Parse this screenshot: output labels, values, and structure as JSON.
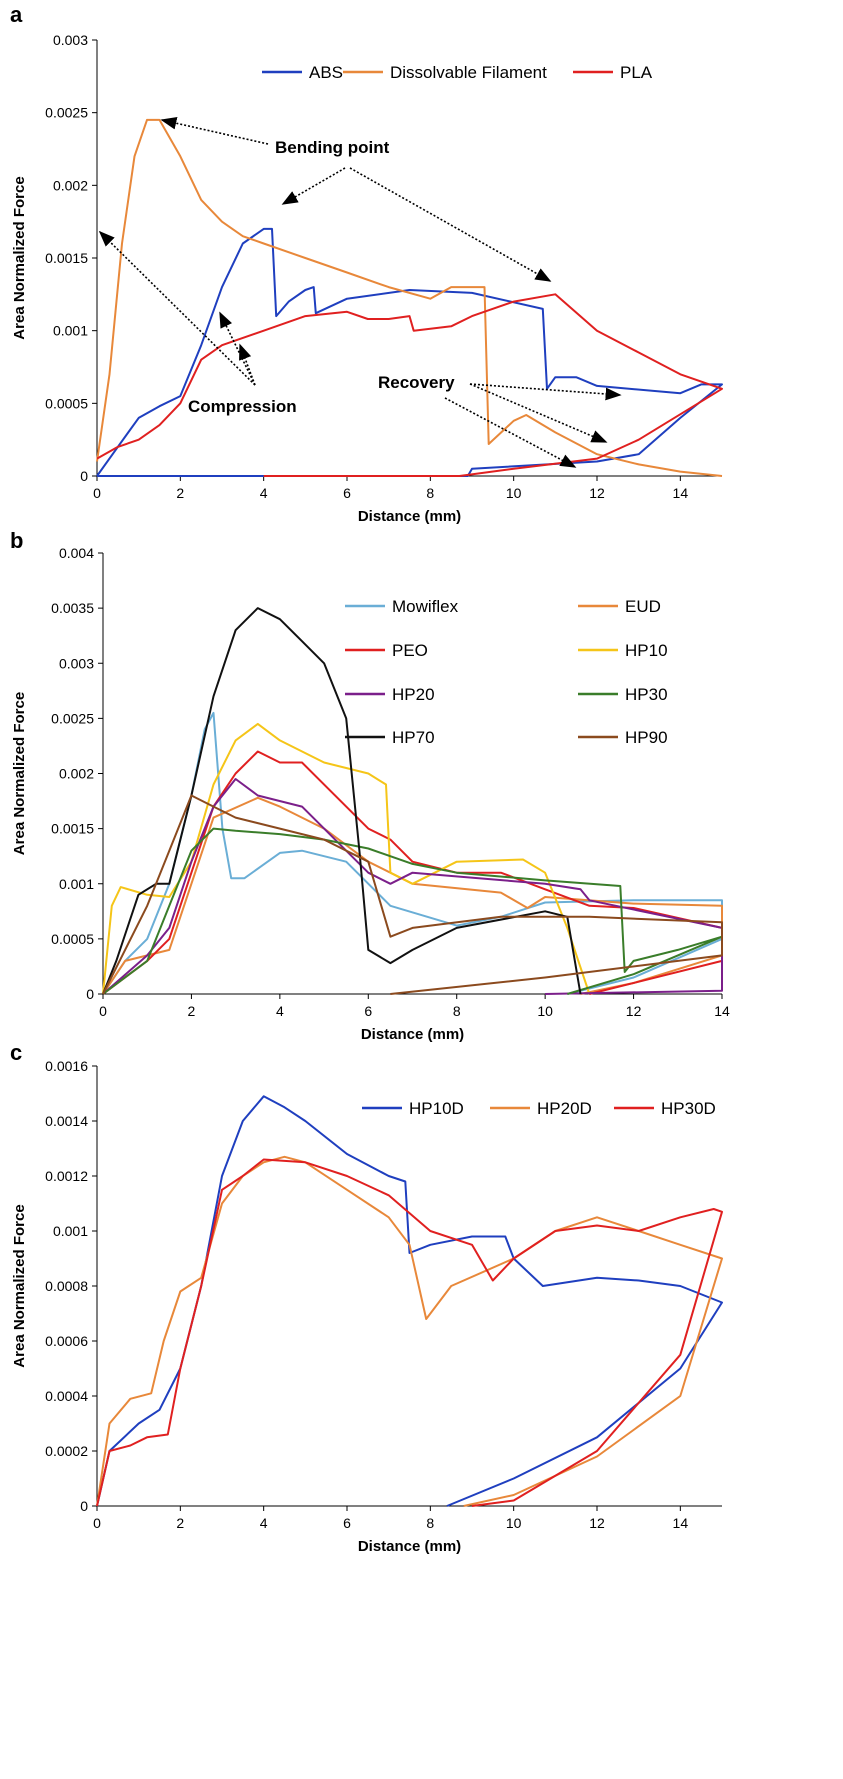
{
  "chart_data": [
    {
      "type": "line",
      "panel": "a",
      "xlabel": "Distance (mm)",
      "ylabel": "Area Normalized Force",
      "xlim": [
        0,
        15
      ],
      "ylim": [
        0,
        0.003
      ],
      "xticks": [
        0,
        2,
        4,
        6,
        8,
        10,
        12,
        14
      ],
      "yticks": [
        0,
        0.0005,
        0.001,
        0.0015,
        0.002,
        0.0025,
        0.003
      ],
      "annotations": [
        "Bending point",
        "Compression",
        "Recovery"
      ],
      "series": [
        {
          "name": "ABS",
          "color": "#1f3fbf",
          "x": [
            0,
            0.5,
            1,
            1.5,
            2,
            2.5,
            3,
            3.5,
            4,
            4.2,
            4.3,
            4.6,
            5,
            5.2,
            5.25,
            6,
            7.5,
            9,
            10.7,
            10.8,
            11,
            11.5,
            12,
            14,
            14.5,
            15,
            14,
            13,
            12,
            9,
            8.9,
            4,
            0
          ],
          "values": [
            0,
            0.0002,
            0.0004,
            0.00048,
            0.00055,
            0.0009,
            0.0013,
            0.0016,
            0.0017,
            0.0017,
            0.0011,
            0.0012,
            0.00128,
            0.0013,
            0.00112,
            0.00122,
            0.00128,
            0.00126,
            0.00115,
            0.0006,
            0.00068,
            0.00068,
            0.00062,
            0.00057,
            0.00063,
            0.00063,
            0.0004,
            0.00015,
            0.0001,
            5e-05,
            0,
            0,
            0
          ]
        },
        {
          "name": "Dissolvable Filament",
          "color": "#e8883a",
          "x": [
            0,
            0.3,
            0.6,
            0.9,
            1.2,
            1.5,
            2,
            2.5,
            3,
            3.5,
            4,
            5,
            6,
            7,
            8,
            8.5,
            9,
            9.3,
            9.4,
            10,
            10.3,
            11,
            12,
            13,
            14,
            15
          ],
          "values": [
            0.0001,
            0.0007,
            0.0016,
            0.0022,
            0.00245,
            0.00245,
            0.0022,
            0.0019,
            0.00175,
            0.00165,
            0.0016,
            0.0015,
            0.0014,
            0.0013,
            0.00122,
            0.0013,
            0.0013,
            0.0013,
            0.00022,
            0.00038,
            0.00042,
            0.0003,
            0.00015,
            8e-05,
            3e-05,
            0
          ]
        },
        {
          "name": "PLA",
          "color": "#e02020",
          "x": [
            0,
            0.5,
            1,
            1.5,
            2,
            2.5,
            3,
            4,
            5,
            6,
            6.5,
            7,
            7.5,
            7.6,
            8.5,
            9,
            10,
            11,
            12,
            13,
            14,
            15,
            13,
            12,
            10,
            8.7,
            4
          ],
          "values": [
            0.00012,
            0.0002,
            0.00025,
            0.00035,
            0.0005,
            0.0008,
            0.0009,
            0.001,
            0.0011,
            0.00113,
            0.00108,
            0.00108,
            0.0011,
            0.001,
            0.00103,
            0.0011,
            0.0012,
            0.00125,
            0.001,
            0.00085,
            0.0007,
            0.0006,
            0.00025,
            0.00012,
            5e-05,
            0,
            0
          ]
        }
      ]
    },
    {
      "type": "line",
      "panel": "b",
      "xlabel": "Distance (mm)",
      "ylabel": "Area Normalized Force",
      "xlim": [
        0,
        14
      ],
      "ylim": [
        0,
        0.004
      ],
      "xticks": [
        0,
        2,
        4,
        6,
        8,
        10,
        12,
        14
      ],
      "yticks": [
        0,
        0.0005,
        0.001,
        0.0015,
        0.002,
        0.0025,
        0.003,
        0.0035,
        0.004
      ],
      "series": [
        {
          "name": "Mowiflex",
          "color": "#6aaed6",
          "x": [
            0,
            0.5,
            1,
            1.5,
            2,
            2.3,
            2.5,
            2.7,
            2.9,
            3.2,
            4,
            4.5,
            5.5,
            6.5,
            8,
            9,
            10,
            12,
            14,
            14,
            12,
            10.5
          ],
          "values": [
            0,
            0.0003,
            0.0005,
            0.001,
            0.0018,
            0.0024,
            0.00255,
            0.0015,
            0.00105,
            0.00105,
            0.00128,
            0.0013,
            0.0012,
            0.0008,
            0.00062,
            0.0007,
            0.00083,
            0.00085,
            0.00085,
            0.0005,
            0.00015,
            0
          ]
        },
        {
          "name": "EUD",
          "color": "#e8883a",
          "x": [
            0,
            0.5,
            1.5,
            2,
            2.5,
            3.5,
            4,
            5,
            6,
            7,
            9,
            9.6,
            10,
            12,
            14,
            14,
            12,
            10.8
          ],
          "values": [
            0,
            0.0003,
            0.0004,
            0.001,
            0.0016,
            0.00178,
            0.0017,
            0.0015,
            0.0012,
            0.001,
            0.00092,
            0.00078,
            0.00088,
            0.00082,
            0.0008,
            0.00035,
            0.0001,
            0
          ]
        },
        {
          "name": "PEO",
          "color": "#e02020",
          "x": [
            0,
            1,
            1.5,
            2,
            2.5,
            3,
            3.5,
            4,
            4.5,
            5.5,
            6,
            6.5,
            7,
            8,
            9,
            10,
            11,
            12,
            14,
            14,
            11
          ],
          "values": [
            0,
            0.0003,
            0.0005,
            0.0011,
            0.0017,
            0.002,
            0.0022,
            0.0021,
            0.0021,
            0.0017,
            0.0015,
            0.0014,
            0.0012,
            0.0011,
            0.0011,
            0.00095,
            0.0008,
            0.00078,
            0.0006,
            0.0003,
            0
          ]
        },
        {
          "name": "HP10",
          "color": "#f5c518",
          "x": [
            0,
            0.2,
            0.4,
            1,
            1.5,
            2,
            2.5,
            3,
            3.5,
            4,
            5,
            6,
            6.4,
            6.5,
            7,
            8,
            9.5,
            10,
            10.5,
            11
          ],
          "values": [
            0,
            0.0008,
            0.00097,
            0.0009,
            0.00088,
            0.0012,
            0.0019,
            0.0023,
            0.00245,
            0.0023,
            0.0021,
            0.002,
            0.0019,
            0.0011,
            0.001,
            0.0012,
            0.00122,
            0.0011,
            0.0006,
            0
          ]
        },
        {
          "name": "HP20",
          "color": "#7b1f8a",
          "x": [
            0,
            1,
            1.5,
            2,
            2.5,
            3,
            3.5,
            4.5,
            5,
            5.5,
            6,
            6.5,
            7,
            10,
            10.8,
            11,
            14,
            14,
            10
          ],
          "values": [
            0,
            0.00035,
            0.0006,
            0.0012,
            0.0017,
            0.00195,
            0.0018,
            0.0017,
            0.0015,
            0.0013,
            0.0011,
            0.001,
            0.0011,
            0.001,
            0.00095,
            0.00085,
            0.0006,
            3e-05,
            0
          ]
        },
        {
          "name": "HP30",
          "color": "#3a7d2a",
          "x": [
            0,
            1,
            1.5,
            2,
            2.5,
            3,
            4,
            5,
            6,
            7,
            8,
            10,
            11.7,
            11.8,
            12,
            13,
            14,
            12,
            10.5
          ],
          "values": [
            0,
            0.0003,
            0.0008,
            0.0013,
            0.0015,
            0.00148,
            0.00145,
            0.0014,
            0.00132,
            0.00118,
            0.0011,
            0.00103,
            0.00098,
            0.0002,
            0.0003,
            0.0004,
            0.00052,
            0.00018,
            0
          ]
        },
        {
          "name": "HP70",
          "color": "#111111",
          "x": [
            0,
            0.3,
            0.8,
            1.2,
            1.5,
            2,
            2.5,
            3,
            3.5,
            4,
            4.5,
            5,
            5.5,
            5.8,
            6,
            6.5,
            7,
            8,
            10,
            10.5,
            10.8
          ],
          "values": [
            0,
            0.0003,
            0.0009,
            0.001,
            0.001,
            0.0018,
            0.0027,
            0.0033,
            0.0035,
            0.0034,
            0.0032,
            0.003,
            0.0025,
            0.0013,
            0.0004,
            0.00028,
            0.0004,
            0.0006,
            0.00075,
            0.0007,
            0
          ]
        },
        {
          "name": "HP90",
          "color": "#8b4a1e",
          "x": [
            0,
            0.5,
            1,
            1.5,
            2,
            2.5,
            3,
            4,
            5,
            6,
            6.5,
            7,
            9,
            11,
            14,
            14,
            10,
            6.5
          ],
          "values": [
            0,
            0.0004,
            0.0008,
            0.0013,
            0.0018,
            0.0017,
            0.0016,
            0.0015,
            0.0014,
            0.0012,
            0.00052,
            0.0006,
            0.0007,
            0.0007,
            0.00065,
            0.00035,
            0.00015,
            0
          ]
        }
      ]
    },
    {
      "type": "line",
      "panel": "c",
      "xlabel": "Distance (mm)",
      "ylabel": "Area Normalized Force",
      "xlim": [
        0,
        15
      ],
      "ylim": [
        0,
        0.0016
      ],
      "xticks": [
        0,
        2,
        4,
        6,
        8,
        10,
        12,
        14
      ],
      "yticks": [
        0,
        0.0002,
        0.0004,
        0.0006,
        0.0008,
        0.001,
        0.0012,
        0.0014,
        0.0016
      ],
      "series": [
        {
          "name": "HP10D",
          "color": "#1f3fbf",
          "x": [
            0,
            0.3,
            1,
            1.5,
            2,
            2.5,
            3,
            3.5,
            4,
            4.5,
            5,
            6,
            7,
            7.4,
            7.5,
            8,
            9,
            9.8,
            10,
            10.7,
            12,
            13,
            14,
            15,
            14,
            12,
            10,
            8.4
          ],
          "values": [
            0,
            0.0002,
            0.0003,
            0.00035,
            0.0005,
            0.0008,
            0.0012,
            0.0014,
            0.00149,
            0.00145,
            0.0014,
            0.00128,
            0.0012,
            0.00118,
            0.00092,
            0.00095,
            0.00098,
            0.00098,
            0.0009,
            0.0008,
            0.00083,
            0.00082,
            0.0008,
            0.00074,
            0.0005,
            0.00025,
            0.0001,
            0
          ]
        },
        {
          "name": "HP20D",
          "color": "#e8883a",
          "x": [
            0,
            0.3,
            0.8,
            1.3,
            1.6,
            2,
            2.5,
            3,
            3.5,
            4,
            4.5,
            5,
            6,
            7,
            7.5,
            7.9,
            8.5,
            10,
            11,
            12,
            13,
            14,
            15,
            14,
            12,
            10,
            8.8
          ],
          "values": [
            0,
            0.0003,
            0.00039,
            0.00041,
            0.0006,
            0.00078,
            0.00083,
            0.0011,
            0.0012,
            0.00125,
            0.00127,
            0.00125,
            0.00115,
            0.00105,
            0.00095,
            0.00068,
            0.0008,
            0.0009,
            0.001,
            0.00105,
            0.001,
            0.00095,
            0.0009,
            0.0004,
            0.00018,
            4e-05,
            0
          ]
        },
        {
          "name": "HP30D",
          "color": "#e02020",
          "x": [
            0,
            0.3,
            0.8,
            1.2,
            1.7,
            2,
            2.5,
            3,
            3.5,
            4,
            5,
            6,
            7,
            8,
            9,
            9.5,
            10,
            11,
            12,
            13,
            14,
            14.8,
            15,
            14,
            12,
            10,
            9
          ],
          "values": [
            0,
            0.0002,
            0.00022,
            0.00025,
            0.00026,
            0.0005,
            0.0008,
            0.00115,
            0.0012,
            0.00126,
            0.00125,
            0.0012,
            0.00113,
            0.001,
            0.00095,
            0.00082,
            0.0009,
            0.001,
            0.00102,
            0.001,
            0.00105,
            0.00108,
            0.00107,
            0.00055,
            0.0002,
            2e-05,
            0
          ]
        }
      ]
    }
  ]
}
